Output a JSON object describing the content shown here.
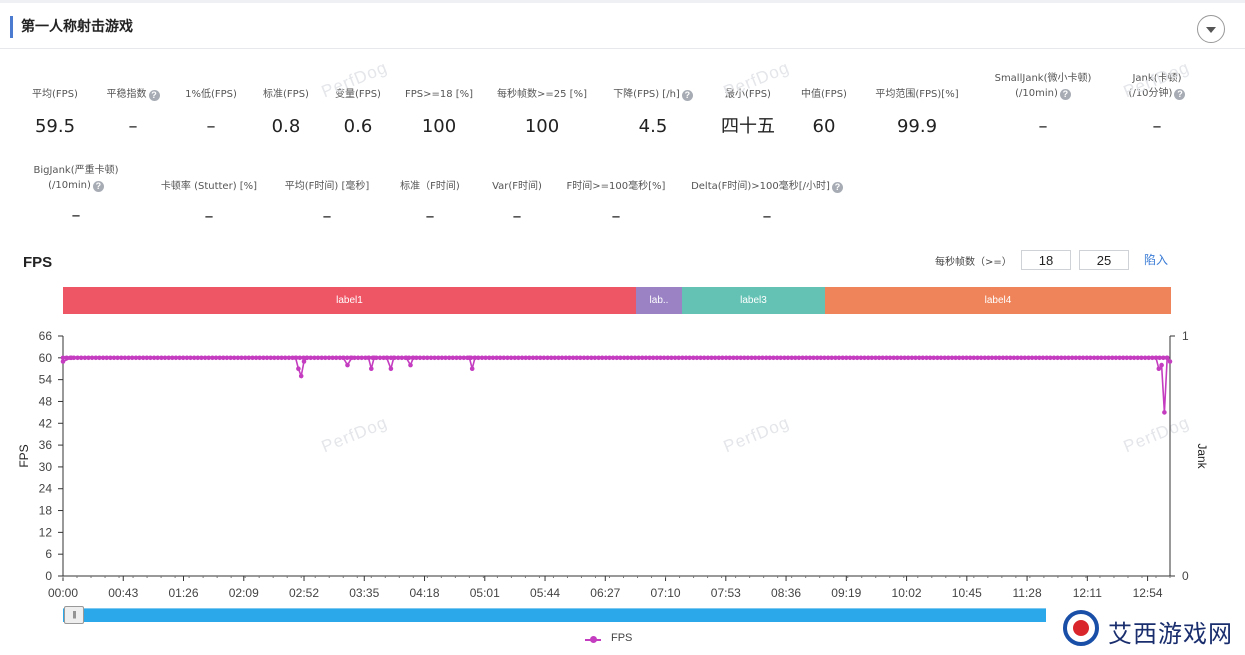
{
  "section_title": "第一人称射击游戏",
  "metrics_row1": [
    {
      "label": "平均(FPS)",
      "value": "59.5",
      "help": false
    },
    {
      "label": "平稳指数",
      "value": "–",
      "help": true
    },
    {
      "label": "1%低(FPS)",
      "value": "–",
      "help": false
    },
    {
      "label": "标准(FPS)",
      "value": "0.8",
      "help": false
    },
    {
      "label": "变量(FPS)",
      "value": "0.6",
      "help": false
    },
    {
      "label": "FPS>=18 [%]",
      "value": "100",
      "help": false
    },
    {
      "label": "每秒帧数>=25 [%]",
      "value": "100",
      "help": false
    },
    {
      "label": "下降(FPS) [/h]",
      "value": "4.5",
      "help": true
    },
    {
      "label": "最小(FPS)",
      "value": "四十五",
      "help": false
    },
    {
      "label": "中值(FPS)",
      "value": "60",
      "help": false
    },
    {
      "label": "平均范围(FPS)[%]",
      "value": "99.9",
      "help": false
    },
    {
      "label": "SmallJank(微小卡顿)",
      "label2": "(/10min)",
      "value": "–",
      "help": true
    },
    {
      "label": "Jank(卡顿)",
      "label2": "(/10分钟)",
      "value": "–",
      "help": true
    }
  ],
  "metrics_row2": [
    {
      "label": "BigJank(严重卡顿)",
      "label2": "(/10min)",
      "value": "–",
      "help": true
    },
    {
      "label": "卡顿率 (Stutter) [%]",
      "value": "–",
      "help": false
    },
    {
      "label": "平均(F时间) [毫秒]",
      "value": "–",
      "help": false
    },
    {
      "label": "标准（F时间)",
      "value": "–",
      "help": false
    },
    {
      "label": "Var(F时间)",
      "value": "–",
      "help": false
    },
    {
      "label": "F时间>=100毫秒[%]",
      "value": "–",
      "help": false
    },
    {
      "label": "Delta(F时间)>100毫秒[/小时]",
      "value": "–",
      "help": true
    }
  ],
  "chart_heading": "FPS",
  "per_second_label": "每秒帧数（>=）",
  "threshold_1": "18",
  "threshold_2": "25",
  "import_label": "陷入",
  "label_segments": [
    {
      "text": "label1",
      "color": "#ee5565"
    },
    {
      "text": "lab..",
      "color": "#9a82c4"
    },
    {
      "text": "label3",
      "color": "#63c2b4"
    },
    {
      "text": "label4",
      "color": "#ef845a"
    }
  ],
  "watermark": "PerfDog",
  "legend_label": "FPS",
  "brand_text": "艾西游戏网",
  "colors": {
    "fps_line": "#c43cc0",
    "accent": "#4a7bd0",
    "scroll": "#2aa8ea"
  },
  "chart_data": {
    "type": "line",
    "ylabel": "FPS",
    "y2label": "Jank",
    "ylim": [
      0,
      66
    ],
    "yticks": [
      "66",
      "60",
      "54",
      "48",
      "42",
      "36",
      "30",
      "24",
      "18",
      "12",
      "6",
      "0"
    ],
    "y2ticks": [
      "1",
      "0"
    ],
    "xticks": [
      "00:00",
      "00:43",
      "01:26",
      "02:09",
      "02:52",
      "03:35",
      "04:18",
      "05:01",
      "05:44",
      "06:27",
      "07:10",
      "07:53",
      "08:36",
      "09:19",
      "10:02",
      "10:45",
      "11:28",
      "12:11",
      "12:54"
    ],
    "x_range_seconds": [
      0,
      790
    ],
    "series": [
      {
        "name": "FPS",
        "baseline": 60,
        "points": [
          [
            0,
            59
          ],
          [
            6,
            60
          ],
          [
            166,
            60
          ],
          [
            168,
            57
          ],
          [
            170,
            55
          ],
          [
            172,
            59
          ],
          [
            174,
            60
          ],
          [
            200,
            60
          ],
          [
            203,
            58
          ],
          [
            206,
            60
          ],
          [
            218,
            60
          ],
          [
            220,
            57
          ],
          [
            222,
            60
          ],
          [
            231,
            60
          ],
          [
            234,
            57
          ],
          [
            236,
            60
          ],
          [
            245,
            60
          ],
          [
            248,
            58
          ],
          [
            250,
            60
          ],
          [
            290,
            60
          ],
          [
            292,
            57
          ],
          [
            294,
            60
          ],
          [
            780,
            60
          ],
          [
            782,
            57
          ],
          [
            784,
            58
          ],
          [
            786,
            45
          ],
          [
            788,
            60
          ],
          [
            790,
            59
          ]
        ]
      }
    ]
  }
}
